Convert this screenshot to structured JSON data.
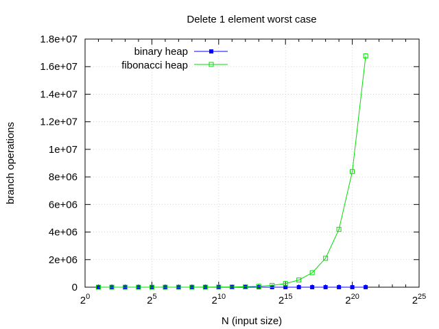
{
  "chart_data": {
    "type": "line",
    "title": "Delete 1 element worst case",
    "xlabel": "N (input size)",
    "ylabel": "branch operations",
    "x_scale": "log2",
    "x_tick_base": "2",
    "x_tick_exponents": [
      "0",
      "5",
      "10",
      "15",
      "20",
      "25"
    ],
    "xlim": [
      1,
      33554432
    ],
    "ylim": [
      0,
      18000000
    ],
    "y_ticks": [
      "0",
      "2e+06",
      "4e+06",
      "6e+06",
      "8e+06",
      "1e+07",
      "1.2e+07",
      "1.4e+07",
      "1.6e+07",
      "1.8e+07"
    ],
    "y_tick_values": [
      0,
      2000000,
      4000000,
      6000000,
      8000000,
      10000000,
      12000000,
      14000000,
      16000000,
      18000000
    ],
    "grid": true,
    "legend_position": "top-left",
    "x": [
      2,
      4,
      8,
      16,
      32,
      64,
      128,
      256,
      512,
      1024,
      2048,
      4096,
      8192,
      16384,
      32768,
      65536,
      131072,
      262144,
      524288,
      1048576,
      2097152
    ],
    "series": [
      {
        "name": "binary heap",
        "color": "#0000ff",
        "marker": "filled-square",
        "values": [
          2,
          4,
          6,
          8,
          10,
          12,
          14,
          16,
          18,
          20,
          22,
          24,
          26,
          28,
          30,
          32,
          34,
          36,
          38,
          40,
          42
        ]
      },
      {
        "name": "fibonacci heap",
        "color": "#00dd00",
        "marker": "open-square",
        "values": [
          16,
          32,
          64,
          128,
          256,
          512,
          1024,
          2048,
          4096,
          8192,
          16384,
          32768,
          65536,
          131072,
          262144,
          524288,
          1048576,
          2097152,
          4194304,
          8388608,
          16777216
        ]
      }
    ]
  }
}
